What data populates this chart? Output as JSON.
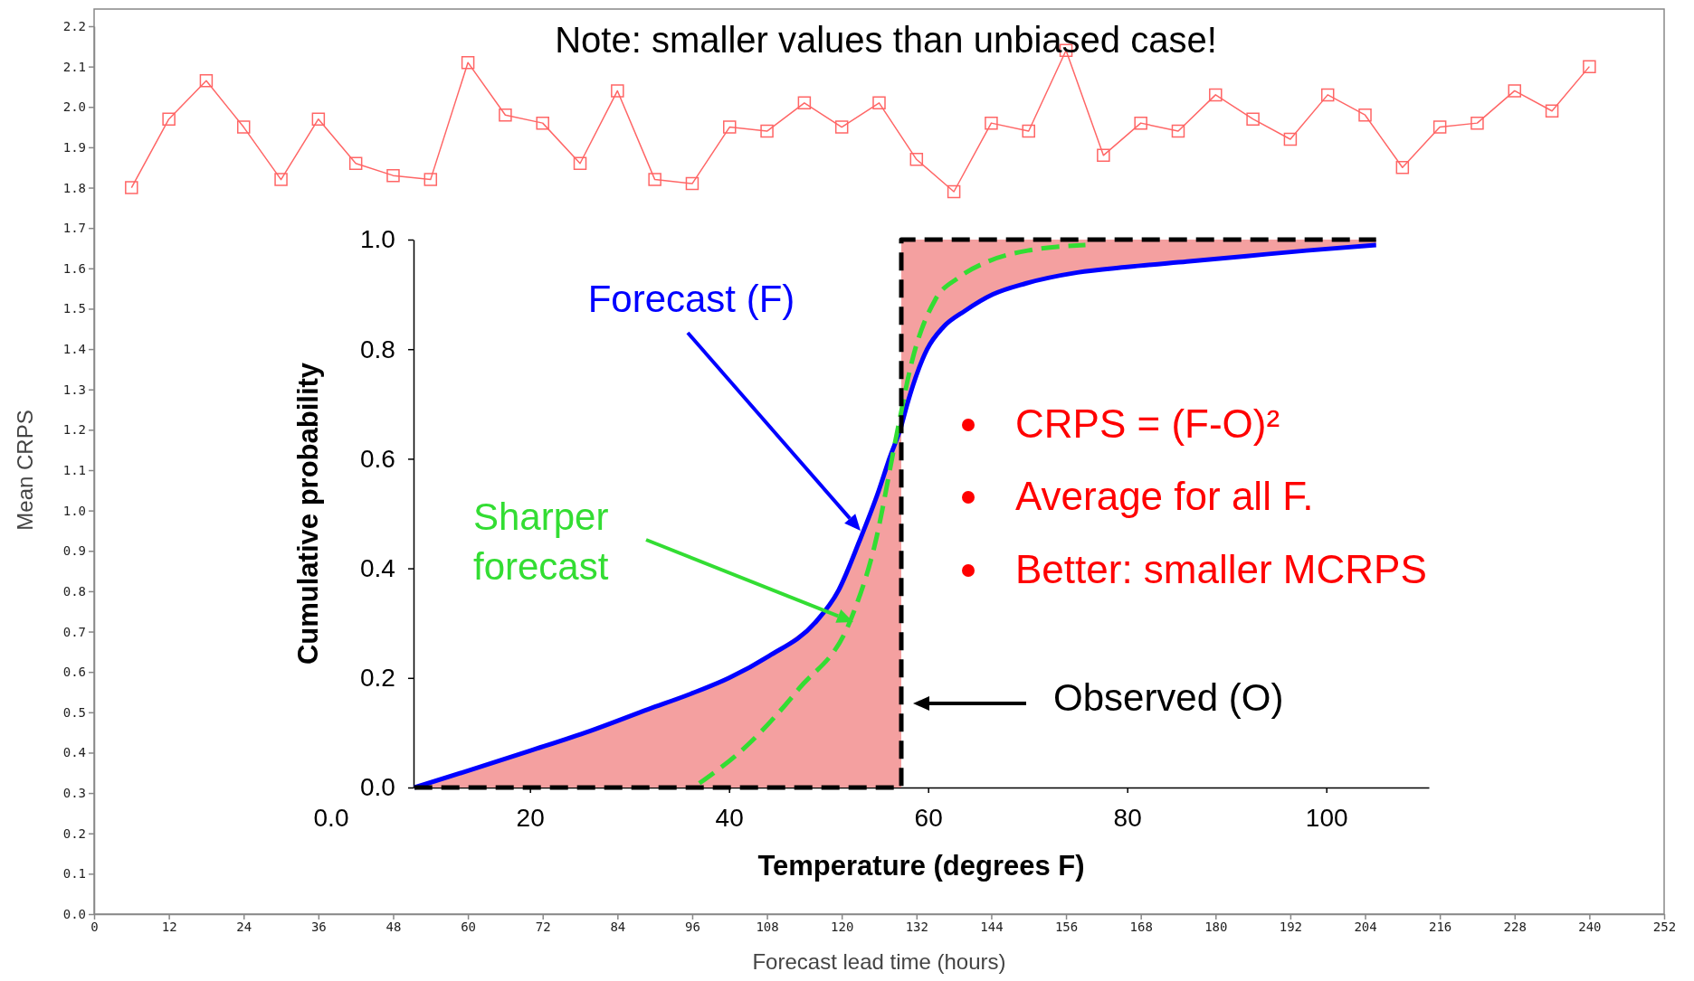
{
  "chart_data": [
    {
      "type": "line",
      "annotations": [
        "Note: smaller values than unbiased case!"
      ],
      "xlabel": "Forecast lead time (hours)",
      "ylabel": "Mean CRPS",
      "marker": "square",
      "x": [
        6,
        12,
        18,
        24,
        30,
        36,
        42,
        48,
        54,
        60,
        66,
        72,
        78,
        84,
        90,
        96,
        102,
        108,
        114,
        120,
        126,
        132,
        138,
        144,
        150,
        156,
        162,
        168,
        174,
        180,
        186,
        192,
        198,
        204,
        210,
        216,
        222,
        228,
        234,
        240
      ],
      "series": [
        {
          "color": "#ff6666",
          "values": [
            1.8,
            1.97,
            2.065,
            1.95,
            1.82,
            1.97,
            1.86,
            1.83,
            1.82,
            2.11,
            1.98,
            1.96,
            1.86,
            2.04,
            1.82,
            1.81,
            1.95,
            1.94,
            2.01,
            1.95,
            2.01,
            1.87,
            1.79,
            1.96,
            1.94,
            2.14,
            1.88,
            1.96,
            1.94,
            2.03,
            1.97,
            1.92,
            2.03,
            1.98,
            1.85,
            1.95,
            1.96,
            2.04,
            1.99,
            2.1
          ]
        }
      ],
      "xlim": [
        0,
        252
      ],
      "xticks": [
        0,
        12,
        24,
        36,
        48,
        60,
        72,
        84,
        96,
        108,
        120,
        132,
        144,
        156,
        168,
        180,
        192,
        204,
        216,
        228,
        240,
        252
      ],
      "ylim": [
        0,
        2.2
      ],
      "yticks": [
        {
          "value": 0,
          "label": "0.0"
        },
        0.1,
        0.2,
        0.3,
        0.4,
        0.5,
        0.6,
        0.7,
        0.8,
        0.9,
        {
          "value": 1,
          "label": "1.0"
        },
        1.1,
        1.2,
        1.3,
        1.4,
        1.5,
        1.6,
        1.7,
        1.8,
        1.9,
        {
          "value": 2,
          "label": "2.0"
        },
        2.1,
        2.2
      ]
    },
    {
      "type": "line",
      "xlabel": "Temperature (degrees F)",
      "ylabel": "Cumulative probability",
      "annotations": [
        "Forecast (F)",
        "Sharper forecast",
        "Observed (O)",
        "CRPS = (F-O)²",
        "Average for all F.",
        "Better: smaller MCRPS",
        "0.0"
      ],
      "series": [
        {
          "color": "#0000ff",
          "line_style": "solid",
          "x": [
            8.4,
            14,
            20,
            26,
            31.9,
            36,
            40,
            44,
            48.6,
            51,
            53.1,
            55,
            56.1,
            57.3,
            57.3,
            57.9,
            59.9,
            61.5,
            63.7,
            66.5,
            69.8,
            75,
            80,
            86,
            92,
            98,
            105
          ],
          "values": [
            0,
            0.032,
            0.067,
            0.103,
            0.143,
            0.17,
            0.2,
            0.24,
            0.3,
            0.36,
            0.45,
            0.54,
            0.6,
            0.66,
            0.66,
            0.7,
            0.8,
            0.84,
            0.87,
            0.9,
            0.92,
            0.94,
            0.95,
            0.96,
            0.97,
            0.98,
            0.99
          ],
          "lower": [
            0,
            0,
            0,
            0,
            0,
            0,
            0,
            0,
            0,
            0,
            0,
            0,
            0,
            0,
            0.66,
            0.7,
            0.8,
            0.84,
            0.87,
            0.9,
            0.92,
            0.94,
            0.95,
            0.96,
            0.97,
            0.98,
            0.99
          ],
          "upper": [
            0,
            0.032,
            0.067,
            0.103,
            0.143,
            0.17,
            0.2,
            0.24,
            0.3,
            0.36,
            0.45,
            0.54,
            0.6,
            0.66,
            1,
            1,
            1,
            1,
            1,
            1,
            1,
            1,
            1,
            1,
            1,
            1,
            1
          ]
        },
        {
          "color": "#33dd33",
          "line_style": "dashed",
          "x": [
            36.4,
            42,
            47,
            52.3,
            54.6,
            56.9,
            58.4,
            60.7,
            63,
            66,
            70,
            75.8
          ],
          "values": [
            0,
            0.08,
            0.18,
            0.31,
            0.44,
            0.65,
            0.78,
            0.89,
            0.93,
            0.96,
            0.98,
            0.99
          ]
        },
        {
          "color": "#000000",
          "line_style": "dashed",
          "x": [
            8.4,
            57.3,
            57.3,
            105
          ],
          "values": [
            0,
            0,
            1,
            1
          ]
        }
      ],
      "xlim": [
        8.3,
        110.3
      ],
      "xticks": [
        20,
        40,
        60,
        80,
        100
      ],
      "ylim": [
        0,
        1
      ],
      "yticks": [
        {
          "value": 0,
          "label": "0.0"
        },
        0.2,
        0.4,
        0.6,
        0.8,
        {
          "value": 1,
          "label": "1.0"
        }
      ]
    }
  ]
}
